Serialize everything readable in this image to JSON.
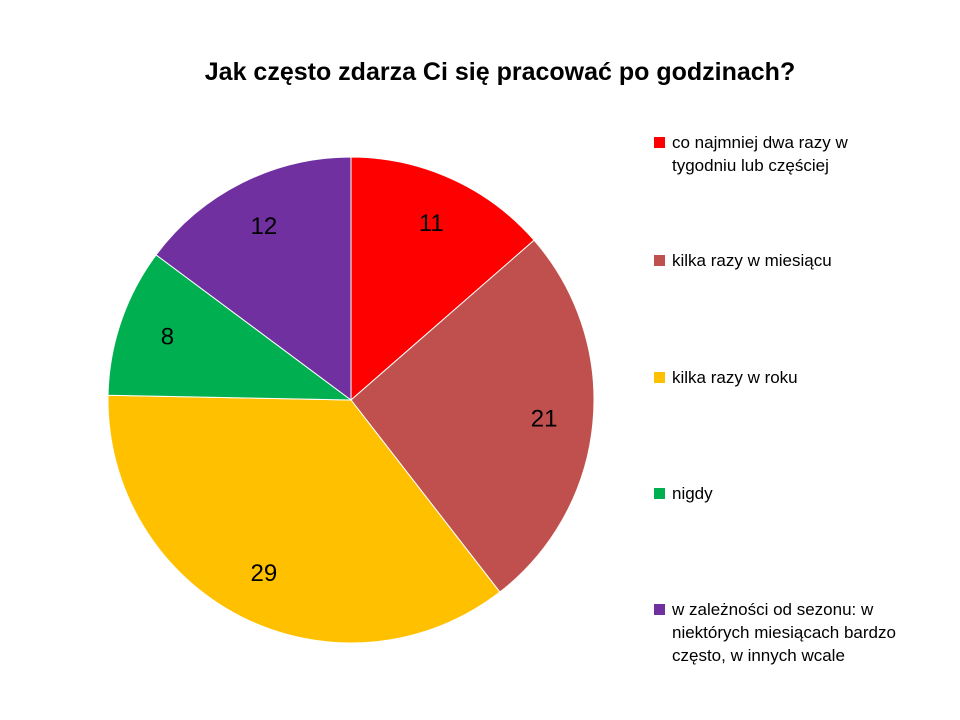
{
  "chart_data": {
    "type": "pie",
    "title": "Jak często zdarza Ci się pracować po godzinach?",
    "categories": [
      "co najmniej dwa razy w tygodniu lub częściej",
      "kilka razy w miesiącu",
      "kilka razy w roku",
      "nigdy",
      "w zależności od sezonu: w niektórych miesiącach bardzo często, w innych wcale"
    ],
    "values": [
      11,
      21,
      29,
      8,
      12
    ],
    "colors": [
      "#ff0000",
      "#c0504d",
      "#ffc000",
      "#00b050",
      "#7030a0"
    ],
    "data_labels": [
      "11",
      "21",
      "29",
      "8",
      "12"
    ],
    "legend_placement": "right"
  }
}
